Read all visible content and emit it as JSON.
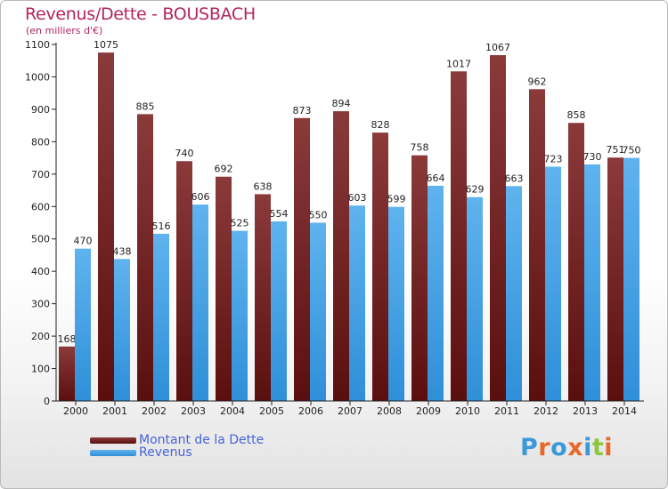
{
  "title": "Revenus/Dette - BOUSBACH",
  "subtitle": "(en milliers d'€)",
  "logo": {
    "text": "Proxiti",
    "colors": [
      "#3a9ad9",
      "#e8682a",
      "#3a9ad9",
      "#e8682a",
      "#3a9ad9",
      "#8cc63f",
      "#e8682a"
    ]
  },
  "colors": {
    "dette_top": "#8b3a3a",
    "dette_bottom": "#5a0f0f",
    "revenus_top": "#5fb3ee",
    "revenus_bottom": "#2f8fd8",
    "axis": "#222222",
    "grid": "#cccccc"
  },
  "chart_data": {
    "type": "bar",
    "categories": [
      "2000",
      "2001",
      "2002",
      "2003",
      "2004",
      "2005",
      "2006",
      "2007",
      "2008",
      "2009",
      "2010",
      "2011",
      "2012",
      "2013",
      "2014"
    ],
    "series": [
      {
        "name": "Montant de la Dette",
        "values": [
          168,
          1075,
          885,
          740,
          692,
          638,
          873,
          894,
          828,
          758,
          1017,
          1067,
          962,
          858,
          751
        ]
      },
      {
        "name": "Revenus",
        "values": [
          470,
          438,
          516,
          606,
          525,
          554,
          550,
          603,
          599,
          664,
          629,
          663,
          723,
          730,
          750
        ]
      }
    ],
    "ylim": [
      0,
      1100
    ],
    "yticks": [
      0,
      100,
      200,
      300,
      400,
      500,
      600,
      700,
      800,
      900,
      1000,
      1100
    ],
    "grid": false,
    "legend_position": "bottom-left"
  }
}
